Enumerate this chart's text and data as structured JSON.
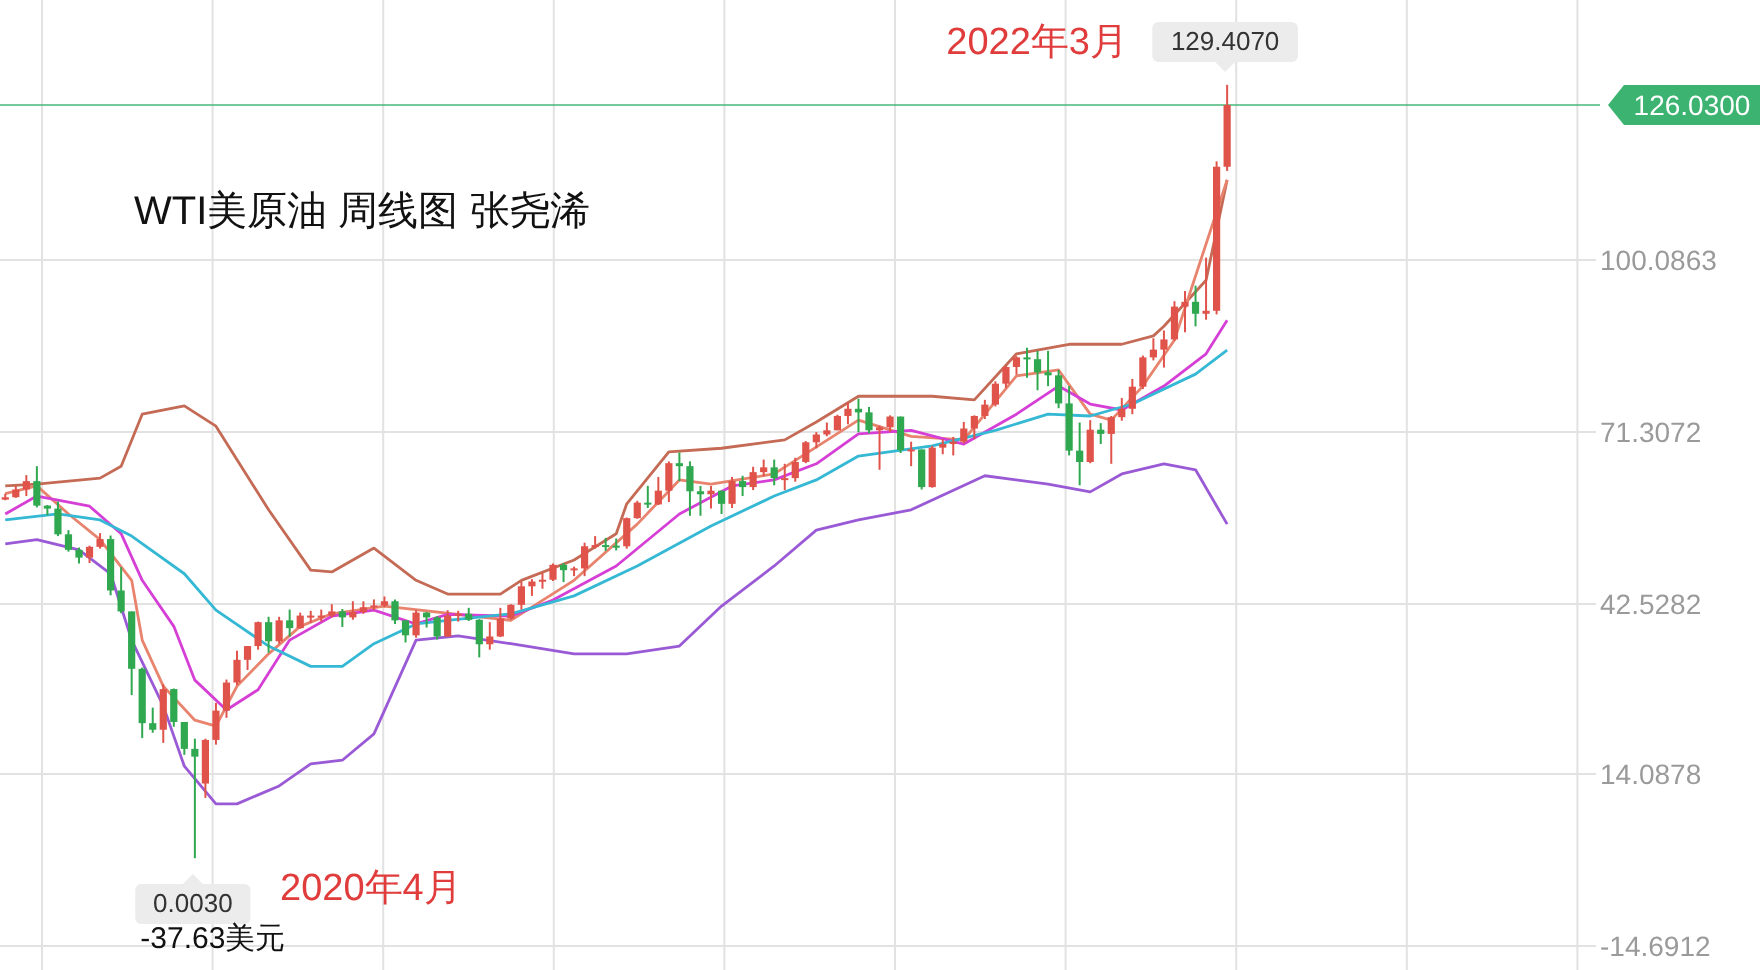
{
  "chart_data": {
    "type": "candlestick",
    "title": "WTI美原油 周线图  张尧浠",
    "categories": [
      null,
      null,
      null,
      null,
      null,
      null,
      null,
      null,
      null,
      null,
      null,
      null,
      null,
      null,
      null,
      null,
      null,
      null,
      null,
      null,
      null,
      null,
      null,
      null,
      null,
      null,
      null,
      null,
      null,
      null,
      null,
      null,
      null,
      null,
      null,
      null,
      null,
      null,
      null,
      null,
      null,
      null,
      null,
      null,
      null,
      null,
      null,
      null,
      null,
      null,
      null,
      null,
      null,
      null,
      null,
      null,
      null,
      null,
      null,
      null,
      null,
      null,
      null,
      null,
      null,
      null,
      null,
      null,
      null,
      null,
      null,
      null,
      null,
      null,
      null,
      null,
      null,
      null,
      null,
      null,
      null,
      null,
      null,
      null,
      null,
      null,
      null,
      null,
      null,
      null,
      null,
      null,
      null,
      null,
      null,
      null,
      null,
      null,
      null,
      null,
      null,
      null,
      null,
      null,
      null,
      null,
      null,
      null,
      null,
      null,
      null,
      null,
      null,
      null,
      null,
      null,
      null,
      null,
      null,
      null,
      null,
      null,
      null,
      null,
      null,
      null,
      null,
      null,
      null,
      null,
      null,
      null,
      null,
      null,
      null,
      null,
      null,
      null,
      null,
      null,
      null,
      null,
      null,
      null,
      null,
      null,
      null,
      null,
      null,
      null
    ],
    "ohlc": [
      [
        60.0,
        61.0,
        59.9,
        60.4
      ],
      [
        60.4,
        62.3,
        60.3,
        61.7
      ],
      [
        61.7,
        64.1,
        60.6,
        63.1
      ],
      [
        63.1,
        65.6,
        58.7,
        59.0
      ],
      [
        59.0,
        59.1,
        57.4,
        58.5
      ],
      [
        58.5,
        59.7,
        53.9,
        54.2
      ],
      [
        54.2,
        54.9,
        51.3,
        51.6
      ],
      [
        51.6,
        52.0,
        49.3,
        50.3
      ],
      [
        50.3,
        52.3,
        49.4,
        52.1
      ],
      [
        52.1,
        54.4,
        51.8,
        53.4
      ],
      [
        53.4,
        54.0,
        44.0,
        44.8
      ],
      [
        44.8,
        48.7,
        41.0,
        41.3
      ],
      [
        41.3,
        41.3,
        27.3,
        31.7
      ],
      [
        31.7,
        31.9,
        20.1,
        22.6
      ],
      [
        22.6,
        25.2,
        21.0,
        21.5
      ],
      [
        21.5,
        29.1,
        19.3,
        28.3
      ],
      [
        28.3,
        28.4,
        22.0,
        22.8
      ],
      [
        22.8,
        22.8,
        17.3,
        18.3
      ],
      [
        18.3,
        20.0,
        0.003,
        17.0
      ],
      [
        12.5,
        20.0,
        10.1,
        19.8
      ],
      [
        19.8,
        26.0,
        19.0,
        24.7
      ],
      [
        24.7,
        29.9,
        23.5,
        29.4
      ],
      [
        29.4,
        34.7,
        29.0,
        33.2
      ],
      [
        33.2,
        35.5,
        31.5,
        35.5
      ],
      [
        35.5,
        39.6,
        34.9,
        39.5
      ],
      [
        39.5,
        40.4,
        34.4,
        36.3
      ],
      [
        36.3,
        40.4,
        35.9,
        39.8
      ],
      [
        39.8,
        41.6,
        37.1,
        38.5
      ],
      [
        38.5,
        41.1,
        38.4,
        40.6
      ],
      [
        40.6,
        41.4,
        39.4,
        40.6
      ],
      [
        40.6,
        41.6,
        39.6,
        40.6
      ],
      [
        40.6,
        42.5,
        40.3,
        41.3
      ],
      [
        41.3,
        41.7,
        38.7,
        40.3
      ],
      [
        40.3,
        43.0,
        39.9,
        41.2
      ],
      [
        41.2,
        43.0,
        40.9,
        42.0
      ],
      [
        42.0,
        43.3,
        41.5,
        42.3
      ],
      [
        42.3,
        43.8,
        42.0,
        43.0
      ],
      [
        43.0,
        43.3,
        39.2,
        39.8
      ],
      [
        39.8,
        39.8,
        36.1,
        37.3
      ],
      [
        37.3,
        41.5,
        36.9,
        41.1
      ],
      [
        41.1,
        41.2,
        38.6,
        40.3
      ],
      [
        40.3,
        40.5,
        36.6,
        37.1
      ],
      [
        37.1,
        41.5,
        37.0,
        40.6
      ],
      [
        40.6,
        41.4,
        39.6,
        40.9
      ],
      [
        40.9,
        41.9,
        39.7,
        39.9
      ],
      [
        39.9,
        40.0,
        33.6,
        35.8
      ],
      [
        35.8,
        39.5,
        34.9,
        37.1
      ],
      [
        37.1,
        41.9,
        37.0,
        40.1
      ],
      [
        40.1,
        42.5,
        39.9,
        42.4
      ],
      [
        42.4,
        46.3,
        41.6,
        45.5
      ],
      [
        45.5,
        46.7,
        43.9,
        46.3
      ],
      [
        46.3,
        47.7,
        45.1,
        46.6
      ],
      [
        46.6,
        49.3,
        46.4,
        49.1
      ],
      [
        49.1,
        49.4,
        46.2,
        48.2
      ],
      [
        48.2,
        48.8,
        47.2,
        48.5
      ],
      [
        48.5,
        52.8,
        47.2,
        52.2
      ],
      [
        52.2,
        53.9,
        51.8,
        52.4
      ],
      [
        52.4,
        53.6,
        51.4,
        52.3
      ],
      [
        52.3,
        53.5,
        51.5,
        52.2
      ],
      [
        52.2,
        57.0,
        51.8,
        56.9
      ],
      [
        56.9,
        59.8,
        56.8,
        59.5
      ],
      [
        59.5,
        62.3,
        58.6,
        59.2
      ],
      [
        59.2,
        63.8,
        59.1,
        61.5
      ],
      [
        61.5,
        66.4,
        59.6,
        66.1
      ],
      [
        66.1,
        67.9,
        63.1,
        65.6
      ],
      [
        65.6,
        66.4,
        57.3,
        61.4
      ],
      [
        61.4,
        62.3,
        57.3,
        60.9
      ],
      [
        60.9,
        62.3,
        58.5,
        61.5
      ],
      [
        61.5,
        61.5,
        57.6,
        59.3
      ],
      [
        59.3,
        63.8,
        58.6,
        63.1
      ],
      [
        63.1,
        64.0,
        60.6,
        62.1
      ],
      [
        62.1,
        65.5,
        61.6,
        64.6
      ],
      [
        64.6,
        66.7,
        63.9,
        65.4
      ],
      [
        65.4,
        66.7,
        62.4,
        63.6
      ],
      [
        63.6,
        66.0,
        61.6,
        63.6
      ],
      [
        63.6,
        67.0,
        63.0,
        66.3
      ],
      [
        66.3,
        69.8,
        66.1,
        69.6
      ],
      [
        69.6,
        71.3,
        68.6,
        70.9
      ],
      [
        70.9,
        72.9,
        70.6,
        71.6
      ],
      [
        71.6,
        74.2,
        71.6,
        74.0
      ],
      [
        74.0,
        76.2,
        72.6,
        75.2
      ],
      [
        75.2,
        76.9,
        71.3,
        74.6
      ],
      [
        74.6,
        75.5,
        71.1,
        71.6
      ],
      [
        71.6,
        72.4,
        65.0,
        72.1
      ],
      [
        72.1,
        74.1,
        71.3,
        73.9
      ],
      [
        73.9,
        73.9,
        67.8,
        68.3
      ],
      [
        68.3,
        69.7,
        65.6,
        68.4
      ],
      [
        68.4,
        68.4,
        61.7,
        62.1
      ],
      [
        62.1,
        69.0,
        62.0,
        68.7
      ],
      [
        68.7,
        70.1,
        67.6,
        69.3
      ],
      [
        69.3,
        70.5,
        67.4,
        69.7
      ],
      [
        69.7,
        73.0,
        69.4,
        71.9
      ],
      [
        71.9,
        74.1,
        70.1,
        74.0
      ],
      [
        74.0,
        76.7,
        73.5,
        75.9
      ],
      [
        75.9,
        79.8,
        75.6,
        79.4
      ],
      [
        79.4,
        82.4,
        78.7,
        82.2
      ],
      [
        82.2,
        84.0,
        80.9,
        83.8
      ],
      [
        83.8,
        85.4,
        80.4,
        83.5
      ],
      [
        83.5,
        84.9,
        78.3,
        81.3
      ],
      [
        81.3,
        84.9,
        79.0,
        80.8
      ],
      [
        80.8,
        81.7,
        75.3,
        76.1
      ],
      [
        76.1,
        79.0,
        67.4,
        68.2
      ],
      [
        68.2,
        72.9,
        62.4,
        66.3
      ],
      [
        66.3,
        73.3,
        66.1,
        71.7
      ],
      [
        71.7,
        72.8,
        69.3,
        71.0
      ],
      [
        71.0,
        74.0,
        66.0,
        73.8
      ],
      [
        73.8,
        77.0,
        73.2,
        75.2
      ],
      [
        75.2,
        80.2,
        74.3,
        78.9
      ],
      [
        78.9,
        84.1,
        78.5,
        83.8
      ],
      [
        83.8,
        87.0,
        83.3,
        85.1
      ],
      [
        85.1,
        88.3,
        82.1,
        86.8
      ],
      [
        86.8,
        93.2,
        86.6,
        92.3
      ],
      [
        92.3,
        94.9,
        88.0,
        93.1
      ],
      [
        93.1,
        95.8,
        89.0,
        91.1
      ],
      [
        91.1,
        100.5,
        90.1,
        91.6
      ],
      [
        91.6,
        116.6,
        91.0,
        115.7
      ],
      [
        115.7,
        129.407,
        115.0,
        126.03
      ],
      null,
      null,
      null,
      null,
      null,
      null,
      null,
      null,
      null,
      null,
      null,
      null,
      null,
      null,
      null,
      null,
      null,
      null,
      null,
      null,
      null,
      null,
      null,
      null,
      null,
      null,
      null,
      null,
      null,
      null,
      null,
      null,
      null
    ],
    "series": [
      {
        "type": "line",
        "color": "#c46a55",
        "values": [
          62.3,
          null,
          null,
          62.6,
          null,
          null,
          null,
          null,
          null,
          63.6,
          null,
          65.6,
          null,
          74.3,
          null,
          null,
          null,
          75.7,
          null,
          null,
          72.3,
          null,
          null,
          null,
          null,
          58.3,
          null,
          null,
          null,
          48.2,
          null,
          47.9,
          null,
          null,
          null,
          51.9,
          null,
          null,
          null,
          46.5,
          null,
          null,
          44.2,
          null,
          null,
          null,
          null,
          44.2,
          null,
          46.5,
          null,
          null,
          null,
          null,
          49.9,
          null,
          null,
          null,
          54.3,
          59.3,
          null,
          null,
          null,
          68,
          null,
          null,
          null,
          null,
          68.6,
          null,
          null,
          null,
          null,
          null,
          70,
          null,
          null,
          73,
          null,
          null,
          null,
          77.3,
          null,
          null,
          null,
          null,
          null,
          null,
          77.3,
          null,
          null,
          null,
          76.7,
          null,
          null,
          null,
          84.4,
          null,
          null,
          null,
          null,
          86,
          null,
          null,
          null,
          null,
          86,
          null,
          null,
          87.4,
          89,
          null,
          null,
          null,
          96.7,
          null,
          113.5,
          null,
          null,
          null,
          null,
          null,
          null,
          null,
          null,
          null,
          null,
          null,
          null,
          null,
          null,
          null,
          null,
          null,
          null,
          null,
          null,
          null,
          null,
          null,
          null,
          null,
          null,
          null,
          null,
          null,
          null,
          null,
          null,
          null
        ]
      },
      {
        "type": "line",
        "color": "#e8836e",
        "values": [
          61,
          null,
          null,
          62.3,
          null,
          null,
          57.6,
          null,
          null,
          53.3,
          null,
          null,
          46.5,
          36.5,
          null,
          28.8,
          null,
          null,
          23.1,
          null,
          22.1,
          null,
          28.8,
          null,
          null,
          34.2,
          null,
          null,
          38.8,
          null,
          null,
          40.9,
          null,
          null,
          null,
          null,
          42.2,
          null,
          null,
          null,
          null,
          null,
          null,
          null,
          null,
          null,
          null,
          null,
          39.8,
          null,
          null,
          null,
          null,
          null,
          46.5,
          null,
          null,
          null,
          null,
          null,
          55.9,
          null,
          null,
          null,
          63.3,
          null,
          null,
          62.6,
          null,
          null,
          null,
          null,
          null,
          64.3,
          null,
          null,
          null,
          null,
          null,
          null,
          null,
          73.3,
          null,
          null,
          null,
          null,
          70.6,
          null,
          null,
          null,
          null,
          70,
          null,
          null,
          null,
          null,
          80.7,
          null,
          null,
          null,
          81.7,
          null,
          null,
          74.3,
          null,
          73.3,
          null,
          null,
          79,
          null,
          null,
          86.7,
          null,
          null,
          null,
          null,
          113.5,
          null,
          null,
          null,
          null,
          null,
          null,
          null,
          null,
          null,
          null,
          null,
          null,
          null,
          null,
          null,
          null,
          null,
          null,
          null,
          null,
          null,
          null,
          null,
          null,
          null,
          null,
          null,
          null,
          null,
          null,
          null,
          null,
          null
        ]
      },
      {
        "type": "line",
        "color": "#d63fd6",
        "values": [
          57.6,
          null,
          null,
          60.6,
          null,
          null,
          null,
          null,
          58.9,
          null,
          null,
          54.3,
          null,
          46.5,
          null,
          null,
          38.8,
          null,
          29.8,
          null,
          null,
          24.8,
          null,
          null,
          28.2,
          null,
          null,
          36.5,
          null,
          null,
          null,
          40.5,
          null,
          null,
          null,
          41.5,
          null,
          null,
          null,
          39.2,
          null,
          null,
          40.8,
          null,
          null,
          null,
          null,
          null,
          40.5,
          null,
          null,
          null,
          43.2,
          null,
          null,
          null,
          null,
          null,
          48.9,
          null,
          null,
          null,
          null,
          null,
          57.6,
          null,
          null,
          null,
          null,
          62.3,
          null,
          null,
          null,
          63.3,
          null,
          null,
          null,
          66,
          null,
          null,
          null,
          71,
          null,
          null,
          null,
          null,
          71.6,
          null,
          null,
          null,
          null,
          69.3,
          null,
          null,
          null,
          null,
          74.3,
          null,
          null,
          null,
          79,
          null,
          null,
          76,
          null,
          null,
          75,
          null,
          null,
          null,
          79,
          null,
          null,
          null,
          84.4,
          null,
          90,
          null,
          null,
          null,
          null,
          null,
          null,
          null,
          null,
          null,
          null,
          null,
          null,
          null,
          null,
          null,
          null,
          null,
          null,
          null,
          null,
          null,
          null,
          null,
          null,
          null,
          null,
          null,
          null,
          null,
          null,
          null,
          null,
          null
        ]
      },
      {
        "type": "line",
        "color": "#35b8d4",
        "values": [
          56.6,
          null,
          null,
          null,
          null,
          57.6,
          null,
          null,
          null,
          56.6,
          null,
          null,
          53.9,
          null,
          null,
          null,
          null,
          47.6,
          null,
          null,
          41.5,
          null,
          null,
          null,
          null,
          35.5,
          null,
          null,
          null,
          32.1,
          null,
          null,
          32.1,
          null,
          null,
          35.9,
          null,
          null,
          null,
          39.2,
          null,
          null,
          39.8,
          null,
          null,
          null,
          null,
          null,
          40.9,
          null,
          null,
          null,
          null,
          null,
          43.9,
          null,
          null,
          null,
          null,
          null,
          48.9,
          null,
          null,
          null,
          null,
          null,
          null,
          55.6,
          null,
          null,
          null,
          null,
          null,
          60.6,
          null,
          null,
          null,
          63.3,
          null,
          null,
          null,
          67.3,
          null,
          null,
          null,
          null,
          null,
          null,
          69,
          null,
          null,
          null,
          null,
          null,
          71.6,
          null,
          null,
          null,
          null,
          74.3,
          null,
          null,
          null,
          74,
          null,
          null,
          null,
          76,
          null,
          null,
          null,
          null,
          null,
          81,
          null,
          null,
          85,
          null,
          null,
          null,
          null,
          null,
          null,
          null,
          null,
          null,
          null,
          null,
          null,
          null,
          null,
          null,
          null,
          null,
          null,
          null,
          null,
          null,
          null,
          null,
          null,
          null,
          null,
          null,
          null,
          null,
          null,
          null,
          null,
          null
        ]
      },
      {
        "type": "line",
        "color": "#9a5ad6",
        "values": [
          52.6,
          null,
          null,
          53.3,
          null,
          null,
          null,
          51.6,
          null,
          null,
          47.6,
          null,
          36.5,
          null,
          null,
          25.5,
          null,
          15.4,
          null,
          null,
          9.1,
          null,
          9.1,
          null,
          null,
          null,
          12.1,
          null,
          null,
          15.8,
          null,
          null,
          16.4,
          null,
          null,
          20.8,
          null,
          null,
          null,
          36.5,
          null,
          null,
          null,
          37.2,
          null,
          null,
          null,
          null,
          35.9,
          null,
          null,
          null,
          null,
          null,
          34.2,
          null,
          null,
          null,
          null,
          34.2,
          null,
          null,
          null,
          null,
          35.5,
          null,
          null,
          null,
          42.2,
          null,
          null,
          null,
          null,
          48.9,
          null,
          null,
          null,
          54.9,
          null,
          null,
          null,
          56.6,
          null,
          null,
          null,
          null,
          58.3,
          null,
          null,
          null,
          null,
          null,
          null,
          64,
          null,
          null,
          null,
          null,
          null,
          62.6,
          null,
          null,
          null,
          61.3,
          null,
          null,
          64.3,
          null,
          null,
          null,
          66,
          null,
          null,
          65,
          null,
          null,
          55.9,
          null,
          null,
          null,
          null,
          null,
          null,
          null,
          null,
          null,
          null,
          null,
          null,
          null,
          null,
          null,
          null,
          null,
          null,
          null,
          null,
          null,
          null,
          null,
          null,
          null,
          null,
          null,
          null,
          null,
          null,
          null,
          null,
          null
        ]
      }
    ],
    "ylim": [
      -18.7,
      143.6
    ],
    "yticks": [
      -14.6912,
      14.0878,
      42.5282,
      71.3072,
      100.0863
    ],
    "ref_lines": [
      {
        "axis": "y",
        "value": 126.03,
        "label": "126.0300",
        "color": "#3cb371"
      }
    ],
    "annotations": [
      "2022年3月",
      "129.4070",
      "2020年4月",
      "0.0030",
      "-37.63美元"
    ],
    "grid": true,
    "tick_labels": "y"
  }
}
